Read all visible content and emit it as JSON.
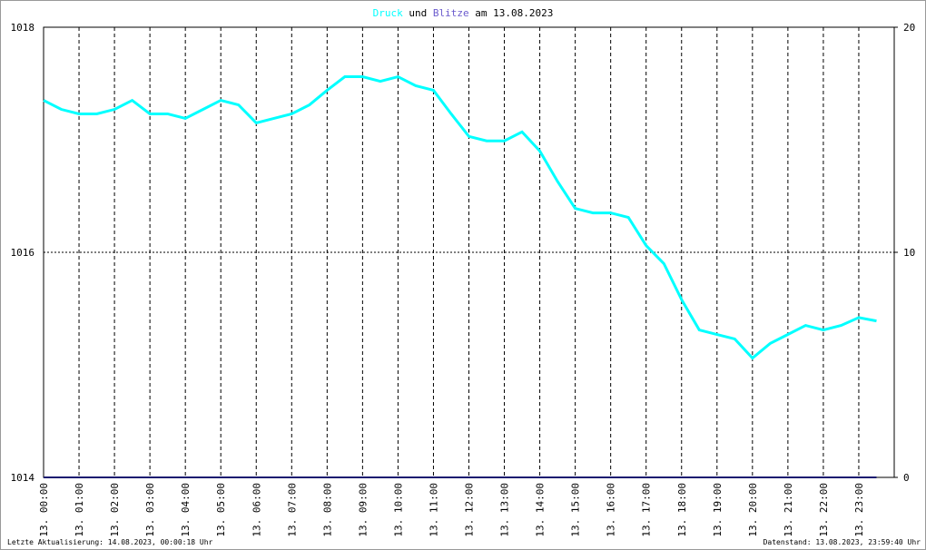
{
  "chart_data": {
    "type": "line",
    "title_joiner": "und",
    "title_date": "am 13.08.2023",
    "footer_left": "Letzte Aktualisierung: 14.08.2023, 00:00:18 Uhr",
    "footer_right": "Datenstand: 13.08.2023, 23:59:40 Uhr",
    "x": [
      0,
      0.5,
      1,
      1.5,
      2,
      2.5,
      3,
      3.5,
      4,
      4.5,
      5,
      5.5,
      6,
      6.5,
      7,
      7.5,
      8,
      8.5,
      9,
      9.5,
      10,
      10.5,
      11,
      11.5,
      12,
      12.5,
      13,
      13.5,
      14,
      14.5,
      15,
      15.5,
      16,
      16.5,
      17,
      17.5,
      18,
      18.5,
      19,
      19.5,
      20,
      20.5,
      21,
      21.5,
      22,
      22.5,
      23,
      23.5
    ],
    "series": [
      {
        "name": "Druck",
        "color": "#00ffff",
        "values": [
          1017.35,
          1017.27,
          1017.23,
          1017.23,
          1017.27,
          1017.35,
          1017.23,
          1017.23,
          1017.19,
          1017.27,
          1017.35,
          1017.31,
          1017.15,
          1017.19,
          1017.23,
          1017.31,
          1017.44,
          1017.56,
          1017.56,
          1017.52,
          1017.56,
          1017.48,
          1017.44,
          1017.23,
          1017.03,
          1016.99,
          1016.99,
          1017.07,
          1016.9,
          1016.63,
          1016.39,
          1016.35,
          1016.35,
          1016.31,
          1016.06,
          1015.9,
          1015.58,
          1015.31,
          1015.27,
          1015.23,
          1015.06,
          1015.19,
          1015.27,
          1015.35,
          1015.31,
          1015.35,
          1015.42,
          1015.39
        ]
      },
      {
        "name": "Blitze",
        "color": "#191970",
        "axis": "y2",
        "values": [
          0,
          0,
          0,
          0,
          0,
          0,
          0,
          0,
          0,
          0,
          0,
          0,
          0,
          0,
          0,
          0,
          0,
          0,
          0,
          0,
          0,
          0,
          0,
          0,
          0,
          0,
          0,
          0,
          0,
          0,
          0,
          0,
          0,
          0,
          0,
          0,
          0,
          0,
          0,
          0,
          0,
          0,
          0,
          0,
          0,
          0,
          0,
          0
        ]
      }
    ],
    "xlim": [
      0,
      24
    ],
    "xticks": [
      {
        "value": 0,
        "label": "13. 00:00"
      },
      {
        "value": 1,
        "label": "13. 01:00"
      },
      {
        "value": 2,
        "label": "13. 02:00"
      },
      {
        "value": 3,
        "label": "13. 03:00"
      },
      {
        "value": 4,
        "label": "13. 04:00"
      },
      {
        "value": 5,
        "label": "13. 05:00"
      },
      {
        "value": 6,
        "label": "13. 06:00"
      },
      {
        "value": 7,
        "label": "13. 07:00"
      },
      {
        "value": 8,
        "label": "13. 08:00"
      },
      {
        "value": 9,
        "label": "13. 09:00"
      },
      {
        "value": 10,
        "label": "13. 10:00"
      },
      {
        "value": 11,
        "label": "13. 11:00"
      },
      {
        "value": 12,
        "label": "13. 12:00"
      },
      {
        "value": 13,
        "label": "13. 13:00"
      },
      {
        "value": 14,
        "label": "13. 14:00"
      },
      {
        "value": 15,
        "label": "13. 15:00"
      },
      {
        "value": 16,
        "label": "13. 16:00"
      },
      {
        "value": 17,
        "label": "13. 17:00"
      },
      {
        "value": 18,
        "label": "13. 18:00"
      },
      {
        "value": 19,
        "label": "13. 19:00"
      },
      {
        "value": 20,
        "label": "13. 20:00"
      },
      {
        "value": 21,
        "label": "13. 21:00"
      },
      {
        "value": 22,
        "label": "13. 22:00"
      },
      {
        "value": 23,
        "label": "13. 23:00"
      }
    ],
    "ylim": [
      1014,
      1018
    ],
    "yticks": [
      1014,
      1016,
      1018
    ],
    "y2lim": [
      0,
      20
    ],
    "y2ticks": [
      0,
      10,
      20
    ],
    "grid": true
  }
}
